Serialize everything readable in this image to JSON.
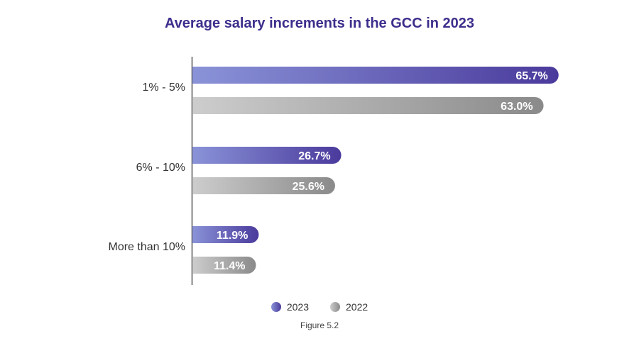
{
  "chart_data": {
    "type": "bar",
    "orientation": "horizontal",
    "title": "Average salary increments in the GCC in 2023",
    "categories": [
      "1% - 5%",
      "6% - 10%",
      "More than 10%"
    ],
    "series": [
      {
        "name": "2023",
        "values": [
          65.7,
          26.7,
          11.9
        ],
        "labels": [
          "65.7%",
          "26.7%",
          "11.9%"
        ],
        "color": "#4a3a9c",
        "color_light": "#8a93d8"
      },
      {
        "name": "2022",
        "values": [
          63.0,
          25.6,
          11.4
        ],
        "labels": [
          "63.0%",
          "25.6%",
          "11.4%"
        ],
        "color": "#8a8a8a",
        "color_light": "#cdcdcd"
      }
    ],
    "xlim": [
      0,
      100
    ],
    "grid": false,
    "legend_position": "bottom"
  },
  "caption": "Figure 5.2"
}
